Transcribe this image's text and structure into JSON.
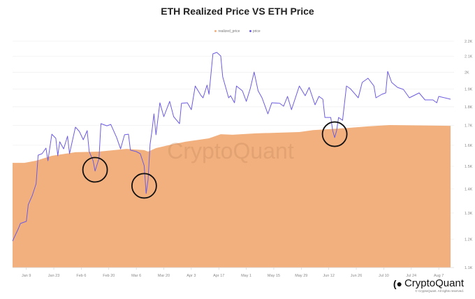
{
  "chart_data": {
    "type": "area+line",
    "title": "ETH Realized Price VS ETH Price",
    "xlabel": "",
    "ylabel": "",
    "y_scale": "log",
    "ylim": [
      1100,
      2200
    ],
    "y_ticks": [
      "1.1K",
      "1.2K",
      "1.3K",
      "1.4K",
      "1.5K",
      "1.6K",
      "1.7K",
      "1.8K",
      "1.9K",
      "2K",
      "2.1K",
      "2.2K"
    ],
    "y_tick_values": [
      1100,
      1200,
      1300,
      1400,
      1500,
      1600,
      1700,
      1800,
      1900,
      2000,
      2100,
      2200
    ],
    "x_ticks": [
      "Jan 9",
      "Jan 23",
      "Feb 6",
      "Feb 20",
      "Mar 6",
      "Mar 20",
      "Apr 3",
      "Apr 17",
      "May 1",
      "May 15",
      "May 29",
      "Jun 12",
      "Jun 26",
      "Jul 10",
      "Jul 24",
      "Aug 7"
    ],
    "xlim": [
      "Jan 2",
      "Aug 13"
    ],
    "grid": true,
    "legend_position": "top-center",
    "series": [
      {
        "name": "realized_price",
        "style": "area",
        "color": "#F2B07F",
        "points": [
          [
            "Jan 2",
            1516
          ],
          [
            "Jan 8",
            1516
          ],
          [
            "Jan 14",
            1526
          ],
          [
            "Jan 22",
            1549
          ],
          [
            "Feb 3",
            1566
          ],
          [
            "Feb 15",
            1569
          ],
          [
            "Mar 1",
            1582
          ],
          [
            "Mar 10",
            1576
          ],
          [
            "Mar 12",
            1569
          ],
          [
            "Mar 16",
            1586
          ],
          [
            "Mar 22",
            1599
          ],
          [
            "Mar 31",
            1617
          ],
          [
            "Apr 12",
            1634
          ],
          [
            "Apr 18",
            1655
          ],
          [
            "Apr 24",
            1652
          ],
          [
            "May 6",
            1659
          ],
          [
            "May 28",
            1666
          ],
          [
            "Jun 4",
            1676
          ],
          [
            "Jun 22",
            1687
          ],
          [
            "Jul 2",
            1695
          ],
          [
            "Jul 13",
            1702
          ],
          [
            "Aug 13",
            1698
          ]
        ]
      },
      {
        "name": "price",
        "style": "line",
        "color": "#6C5CE0",
        "points": [
          [
            "Jan 2",
            1193
          ],
          [
            "Jan 5",
            1240
          ],
          [
            "Jan 6",
            1259
          ],
          [
            "Jan 9",
            1267
          ],
          [
            "Jan 10",
            1334
          ],
          [
            "Jan 12",
            1371
          ],
          [
            "Jan 14",
            1422
          ],
          [
            "Jan 15",
            1552
          ],
          [
            "Jan 17",
            1559
          ],
          [
            "Jan 19",
            1586
          ],
          [
            "Jan 20",
            1526
          ],
          [
            "Jan 22",
            1655
          ],
          [
            "Jan 24",
            1634
          ],
          [
            "Jan 25",
            1549
          ],
          [
            "Jan 26",
            1617
          ],
          [
            "Jan 28",
            1582
          ],
          [
            "Jan 30",
            1645
          ],
          [
            "Jan 31",
            1559
          ],
          [
            "Feb 3",
            1691
          ],
          [
            "Feb 5",
            1669
          ],
          [
            "Feb 7",
            1627
          ],
          [
            "Feb 9",
            1673
          ],
          [
            "Feb 10",
            1569
          ],
          [
            "Feb 12",
            1526
          ],
          [
            "Feb 13",
            1478
          ],
          [
            "Feb 15",
            1536
          ],
          [
            "Feb 16",
            1709
          ],
          [
            "Feb 19",
            1698
          ],
          [
            "Feb 21",
            1705
          ],
          [
            "Feb 24",
            1638
          ],
          [
            "Feb 26",
            1582
          ],
          [
            "Feb 28",
            1652
          ],
          [
            "Mar 2",
            1655
          ],
          [
            "Mar 3",
            1576
          ],
          [
            "Mar 6",
            1569
          ],
          [
            "Mar 8",
            1559
          ],
          [
            "Mar 10",
            1503
          ],
          [
            "Mar 11",
            1380
          ],
          [
            "Mar 12",
            1440
          ],
          [
            "Mar 13",
            1603
          ],
          [
            "Mar 14",
            1673
          ],
          [
            "Mar 15",
            1761
          ],
          [
            "Mar 16",
            1652
          ],
          [
            "Mar 18",
            1822
          ],
          [
            "Mar 20",
            1746
          ],
          [
            "Mar 23",
            1830
          ],
          [
            "Mar 25",
            1746
          ],
          [
            "Mar 28",
            1709
          ],
          [
            "Mar 29",
            1819
          ],
          [
            "Apr 1",
            1822
          ],
          [
            "Apr 3",
            1784
          ],
          [
            "Apr 5",
            1918
          ],
          [
            "Apr 8",
            1862
          ],
          [
            "Apr 9",
            1850
          ],
          [
            "Apr 11",
            1923
          ],
          [
            "Apr 12",
            1870
          ],
          [
            "Apr 14",
            2117
          ],
          [
            "Apr 16",
            2126
          ],
          [
            "Apr 18",
            2103
          ],
          [
            "Apr 19",
            1973
          ],
          [
            "Apr 22",
            1850
          ],
          [
            "Apr 23",
            1862
          ],
          [
            "Apr 25",
            1822
          ],
          [
            "Apr 26",
            1918
          ],
          [
            "Apr 29",
            1890
          ],
          [
            "May 1",
            1830
          ],
          [
            "May 3",
            1902
          ],
          [
            "May 5",
            2002
          ],
          [
            "May 7",
            1890
          ],
          [
            "May 9",
            1850
          ],
          [
            "May 12",
            1761
          ],
          [
            "May 14",
            1822
          ],
          [
            "May 18",
            1819
          ],
          [
            "May 20",
            1803
          ],
          [
            "May 22",
            1858
          ],
          [
            "May 24",
            1784
          ],
          [
            "May 28",
            1918
          ],
          [
            "May 31",
            1862
          ],
          [
            "Jun 2",
            1910
          ],
          [
            "Jun 5",
            1811
          ],
          [
            "Jun 7",
            1858
          ],
          [
            "Jun 9",
            1842
          ],
          [
            "Jun 10",
            1742
          ],
          [
            "Jun 13",
            1742
          ],
          [
            "Jun 14",
            1673
          ],
          [
            "Jun 15",
            1638
          ],
          [
            "Jun 16",
            1673
          ],
          [
            "Jun 17",
            1742
          ],
          [
            "Jun 19",
            1727
          ],
          [
            "Jun 21",
            1918
          ],
          [
            "Jun 23",
            1902
          ],
          [
            "Jun 27",
            1850
          ],
          [
            "Jun 29",
            1939
          ],
          [
            "Jul 2",
            1964
          ],
          [
            "Jul 5",
            1918
          ],
          [
            "Jul 6",
            1850
          ],
          [
            "Jul 9",
            1870
          ],
          [
            "Jul 11",
            1878
          ],
          [
            "Jul 12",
            2006
          ],
          [
            "Jul 14",
            1939
          ],
          [
            "Jul 17",
            1910
          ],
          [
            "Jul 20",
            1898
          ],
          [
            "Jul 23",
            1850
          ],
          [
            "Jul 28",
            1878
          ],
          [
            "Jul 31",
            1838
          ],
          [
            "Aug 4",
            1838
          ],
          [
            "Aug 6",
            1822
          ],
          [
            "Aug 7",
            1858
          ],
          [
            "Aug 13",
            1842
          ]
        ]
      }
    ],
    "annotations": [
      {
        "shape": "circle",
        "date": "Feb 13",
        "value": 1484
      },
      {
        "shape": "circle",
        "date": "Mar 10",
        "value": 1413
      },
      {
        "shape": "circle",
        "date": "Jun 15",
        "value": 1655
      }
    ]
  },
  "legend": {
    "realized_price": "realized_price",
    "price": "price"
  },
  "watermark": "CryptoQuant",
  "brand": {
    "name": "CryptoQuant",
    "copyright": "© CryptoQuant. All rights reserved."
  }
}
